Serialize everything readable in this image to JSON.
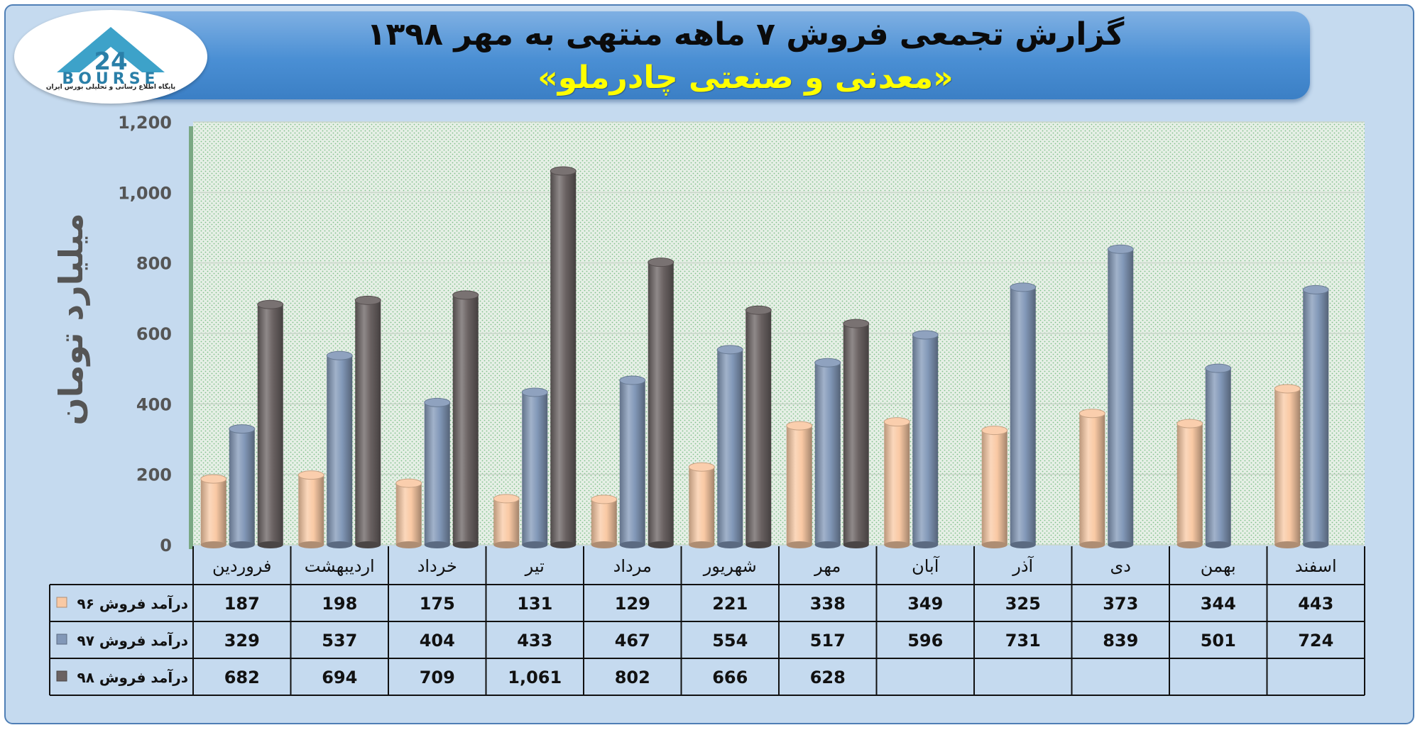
{
  "header": {
    "title": "گزارش تجمعی فروش ۷ ماهه منتهی به مهر ۱۳۹۸",
    "subtitle": "«معدنی و صنعتی چادرملو»",
    "logo_text": "BOURSE",
    "logo_mark": "24",
    "logo_subtext": "پایگاه اطلاع رسانی و تحلیلی بورس ایران"
  },
  "colors": {
    "series_96": "#f9c9a4",
    "series_97": "#8298b8",
    "series_98": "#6a6262",
    "plot_bg": "#dce9dc",
    "frame_bg": "#c5daef",
    "banner": "#4a8fd4",
    "subtitle": "#ffff00"
  },
  "chart_data": {
    "type": "bar",
    "title": "گزارش تجمعی فروش ۷ ماهه منتهی به مهر ۱۳۹۸",
    "subtitle": "«معدنی و صنعتی چادرملو»",
    "ylabel": "میلیارد تومان",
    "xlabel": "",
    "ylim": [
      0,
      1200
    ],
    "yticks": [
      "0",
      "200",
      "400",
      "600",
      "800",
      "1,000",
      "1,200"
    ],
    "ytick_values": [
      0,
      200,
      400,
      600,
      800,
      1000,
      1200
    ],
    "grid": true,
    "legend": "data-table-left",
    "categories": [
      "فروردین",
      "اردیبهشت",
      "خرداد",
      "تیر",
      "مرداد",
      "شهریور",
      "مهر",
      "آبان",
      "آذر",
      "دی",
      "بهمن",
      "اسفند"
    ],
    "series": [
      {
        "name": "درآمد فروش ۹۶",
        "values": [
          187,
          198,
          175,
          131,
          129,
          221,
          338,
          349,
          325,
          373,
          344,
          443
        ],
        "labels": [
          "187",
          "198",
          "175",
          "131",
          "129",
          "221",
          "338",
          "349",
          "325",
          "373",
          "344",
          "443"
        ]
      },
      {
        "name": "درآمد فروش ۹۷",
        "values": [
          329,
          537,
          404,
          433,
          467,
          554,
          517,
          596,
          731,
          839,
          501,
          724
        ],
        "labels": [
          "329",
          "537",
          "404",
          "433",
          "467",
          "554",
          "517",
          "596",
          "731",
          "839",
          "501",
          "724"
        ]
      },
      {
        "name": "درآمد فروش ۹۸",
        "values": [
          682,
          694,
          709,
          1061,
          802,
          666,
          628,
          null,
          null,
          null,
          null,
          null
        ],
        "labels": [
          "682",
          "694",
          "709",
          "1,061",
          "802",
          "666",
          "628",
          "",
          "",
          "",
          "",
          ""
        ]
      }
    ]
  }
}
